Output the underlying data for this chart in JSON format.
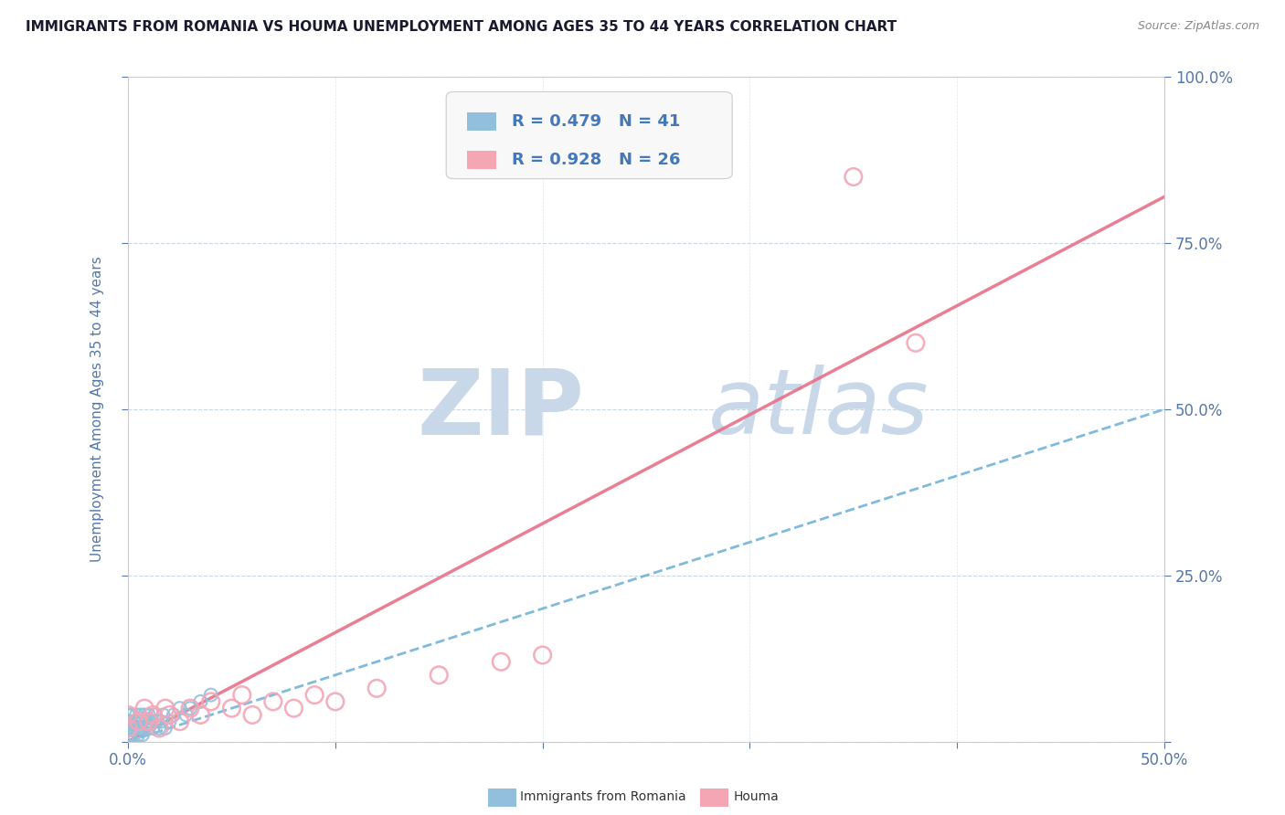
{
  "title": "IMMIGRANTS FROM ROMANIA VS HOUMA UNEMPLOYMENT AMONG AGES 35 TO 44 YEARS CORRELATION CHART",
  "source": "Source: ZipAtlas.com",
  "ylabel": "Unemployment Among Ages 35 to 44 years",
  "xlim": [
    0.0,
    0.5
  ],
  "ylim": [
    0.0,
    1.0
  ],
  "blue_R": 0.479,
  "blue_N": 41,
  "pink_R": 0.928,
  "pink_N": 26,
  "blue_color": "#92C0DC",
  "pink_color": "#F4A6B5",
  "trend_blue_color": "#6AAED6",
  "trend_pink_color": "#E8708A",
  "watermark_zip": "ZIP",
  "watermark_atlas": "atlas",
  "watermark_color": "#C8D8E8",
  "title_color": "#1a1a2e",
  "axis_label_color": "#5577AA",
  "tick_label_color": "#5577AA",
  "blue_trend": [
    0.0,
    0.0,
    0.5,
    0.5
  ],
  "pink_trend": [
    0.0,
    0.0,
    0.5,
    0.82
  ],
  "blue_scatter_x": [
    0.0,
    0.0,
    0.0,
    0.0,
    0.0,
    0.001,
    0.001,
    0.002,
    0.002,
    0.003,
    0.003,
    0.003,
    0.004,
    0.004,
    0.005,
    0.005,
    0.005,
    0.006,
    0.006,
    0.007,
    0.007,
    0.008,
    0.008,
    0.009,
    0.01,
    0.01,
    0.011,
    0.012,
    0.013,
    0.014,
    0.015,
    0.016,
    0.017,
    0.018,
    0.02,
    0.022,
    0.025,
    0.028,
    0.03,
    0.035,
    0.04
  ],
  "blue_scatter_y": [
    0.0,
    0.01,
    0.02,
    0.03,
    0.04,
    0.01,
    0.03,
    0.02,
    0.04,
    0.01,
    0.02,
    0.03,
    0.02,
    0.04,
    0.01,
    0.02,
    0.03,
    0.02,
    0.04,
    0.01,
    0.03,
    0.02,
    0.04,
    0.03,
    0.02,
    0.04,
    0.03,
    0.02,
    0.04,
    0.03,
    0.02,
    0.03,
    0.04,
    0.02,
    0.03,
    0.04,
    0.05,
    0.04,
    0.05,
    0.06,
    0.07
  ],
  "pink_scatter_x": [
    0.0,
    0.0,
    0.005,
    0.008,
    0.01,
    0.012,
    0.015,
    0.018,
    0.02,
    0.025,
    0.03,
    0.035,
    0.04,
    0.05,
    0.055,
    0.06,
    0.07,
    0.08,
    0.09,
    0.1,
    0.12,
    0.15,
    0.18,
    0.2,
    0.35,
    0.38
  ],
  "pink_scatter_y": [
    0.02,
    0.04,
    0.03,
    0.05,
    0.03,
    0.04,
    0.02,
    0.05,
    0.04,
    0.03,
    0.05,
    0.04,
    0.06,
    0.05,
    0.07,
    0.04,
    0.06,
    0.05,
    0.07,
    0.06,
    0.08,
    0.1,
    0.12,
    0.13,
    0.85,
    0.6
  ]
}
